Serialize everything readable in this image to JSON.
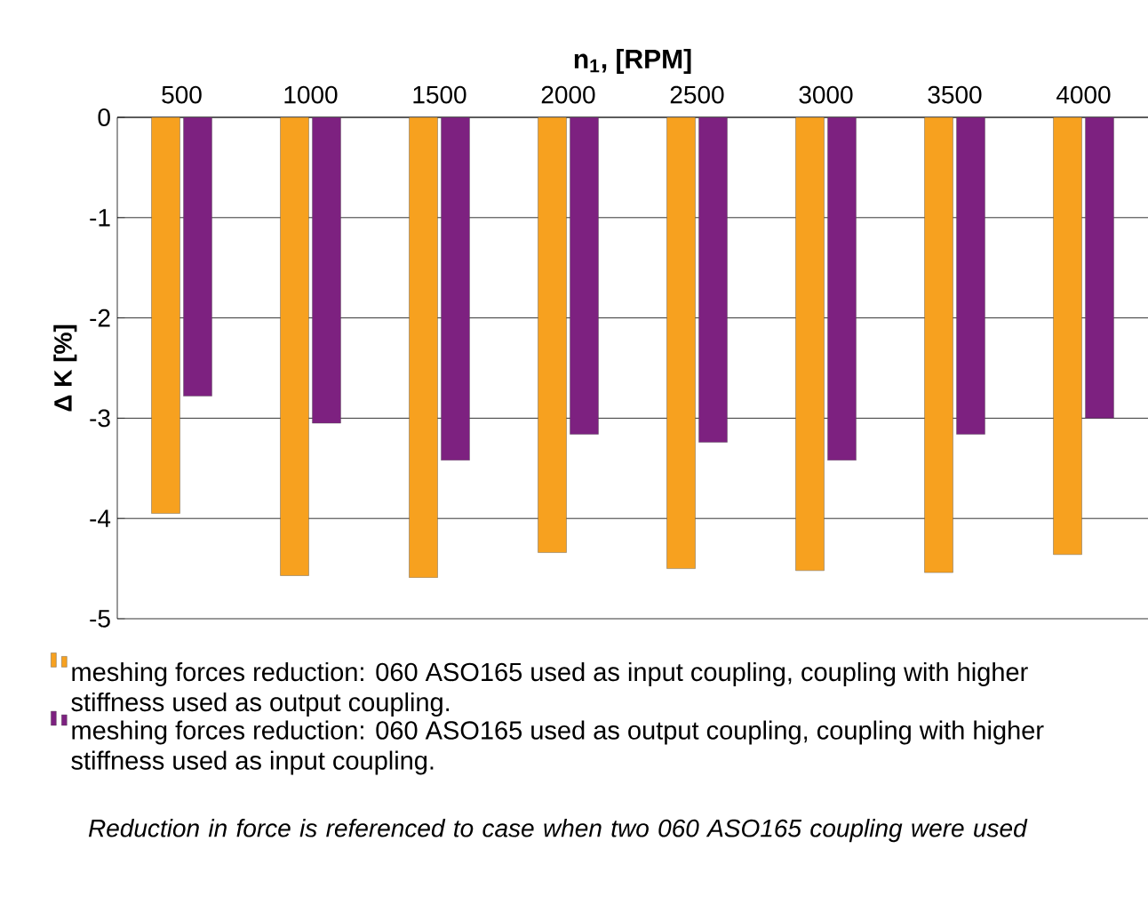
{
  "chart_data": {
    "type": "bar",
    "xlabel": "n$_{1}$, [RPM]",
    "ylabel": "Δ K   [%]",
    "categories": [
      "500",
      "1000",
      "1500",
      "2000",
      "2500",
      "3000",
      "3500",
      "4000"
    ],
    "series": [
      {
        "name": "meshing forces reduction: 060 ASO165 used as input coupling, coupling with higher stiffness used as output coupling.",
        "color": "#f7a11f",
        "values": [
          -3.95,
          -4.57,
          -4.59,
          -4.34,
          -4.5,
          -4.52,
          -4.54,
          -4.36
        ]
      },
      {
        "name": "meshing forces reduction: 060 ASO165 used as output coupling, coupling with higher stiffness used as input coupling.",
        "color": "#7d2180",
        "values": [
          -2.78,
          -3.05,
          -3.42,
          -3.16,
          -3.24,
          -3.42,
          -3.16,
          -3.0
        ]
      }
    ],
    "ylim": [
      -5,
      0
    ],
    "yticks": [
      -5,
      -4,
      -3,
      -2,
      -1,
      0
    ],
    "grid": "y",
    "legend": "bottom",
    "annotations": [
      "Reduction in force is referenced to case when two 060 ASO165 coupling were used"
    ]
  }
}
